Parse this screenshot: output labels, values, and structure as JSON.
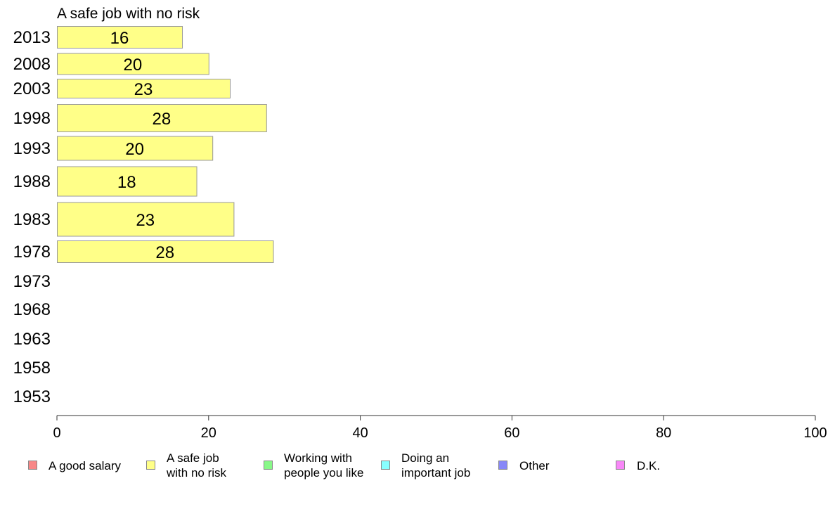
{
  "chart_data": {
    "type": "bar",
    "orientation": "horizontal",
    "title": "A safe job with no risk",
    "xlabel": "",
    "ylabel": "",
    "xlim": [
      0,
      100
    ],
    "x_ticks": [
      0,
      20,
      40,
      60,
      80,
      100
    ],
    "grid": false,
    "categories": [
      "2013",
      "2008",
      "2003",
      "1998",
      "1993",
      "1988",
      "1983",
      "1978",
      "1973",
      "1968",
      "1963",
      "1958",
      "1953"
    ],
    "series": [
      {
        "name": "A safe job with no risk",
        "color": "#ffff88",
        "values": [
          16.5,
          20,
          22.8,
          27.6,
          20.5,
          18.4,
          23.3,
          28.5,
          null,
          null,
          null,
          null,
          null
        ],
        "labels": [
          "16",
          "20",
          "23",
          "28",
          "20",
          "18",
          "23",
          "28",
          "",
          "",
          "",
          "",
          ""
        ]
      }
    ],
    "legend": {
      "placement": "bottom",
      "items": [
        {
          "label": "A good salary",
          "color": "#f88888"
        },
        {
          "label": "A safe job\nwith no risk",
          "color": "#ffff88"
        },
        {
          "label": "Working with\npeople you like",
          "color": "#88f888"
        },
        {
          "label": "Doing an\nimportant job",
          "color": "#88ffff"
        },
        {
          "label": "Other",
          "color": "#8888f8"
        },
        {
          "label": "D.K.",
          "color": "#f888f8"
        }
      ]
    }
  }
}
